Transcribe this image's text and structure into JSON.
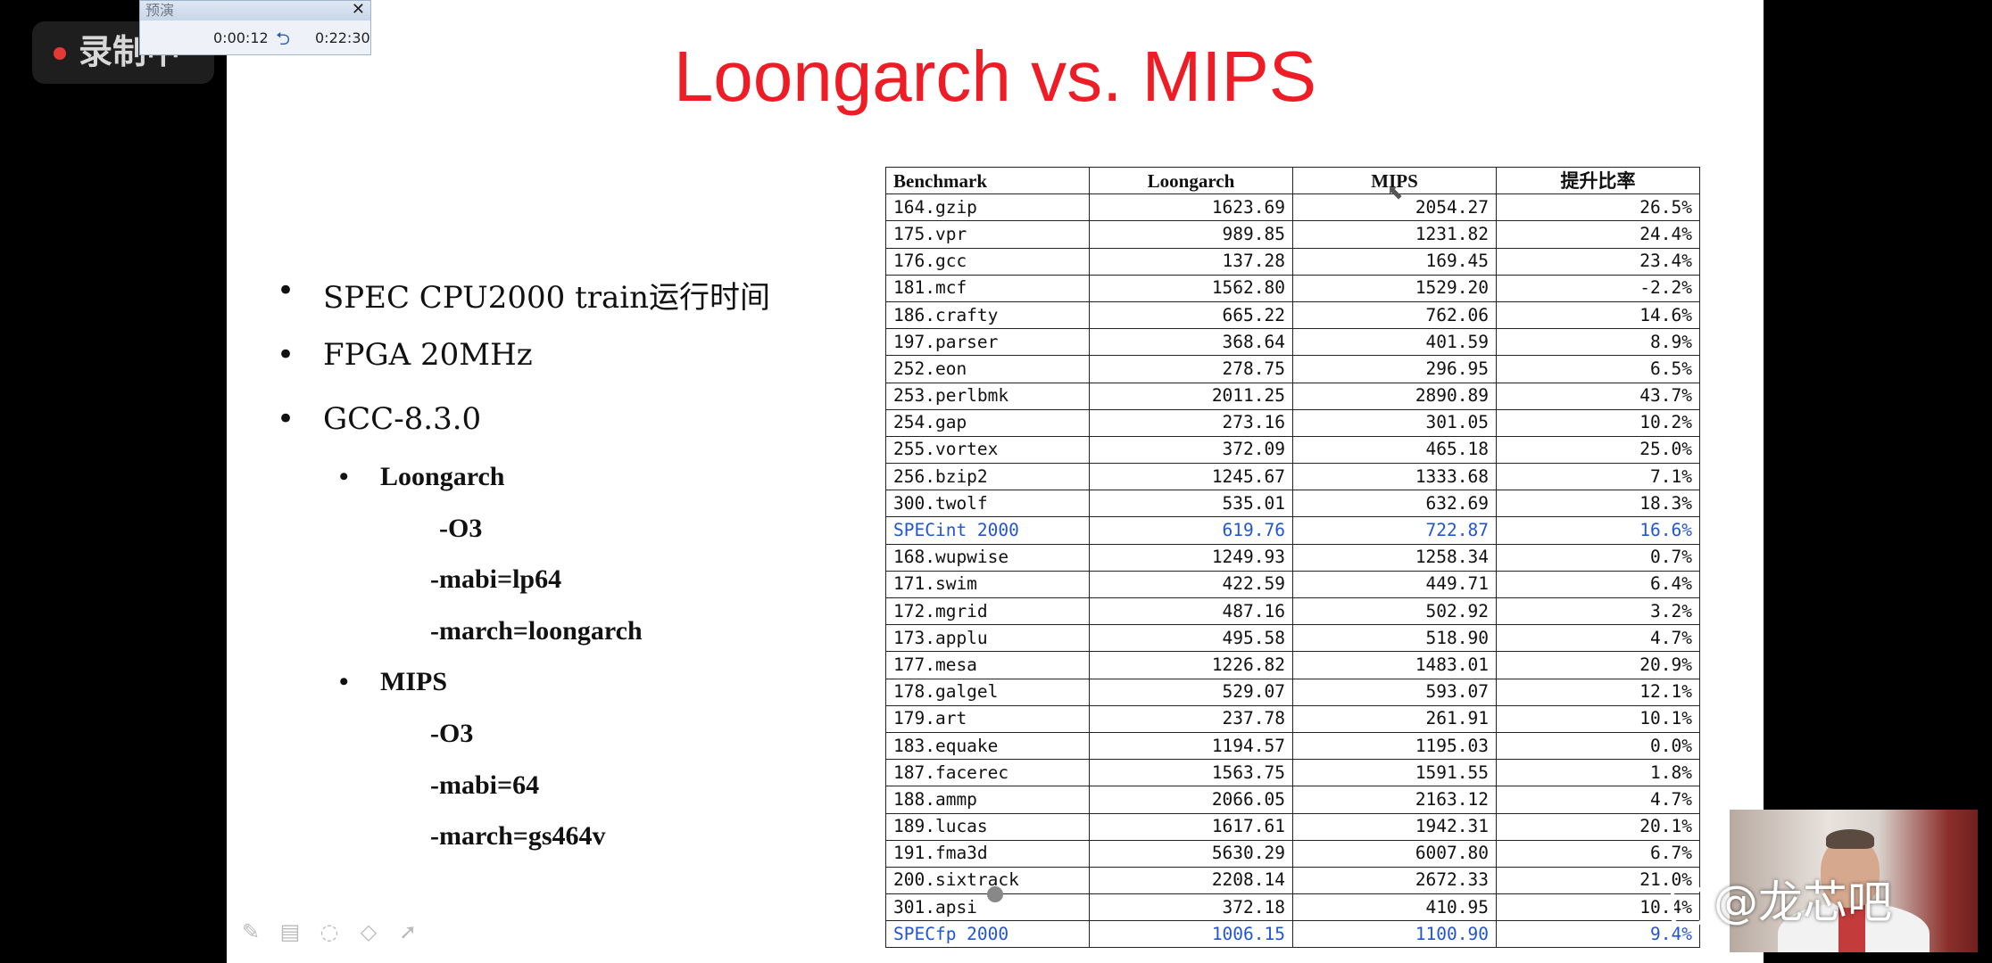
{
  "recording_badge": {
    "label": "录制中",
    "dot_color": "#e53935"
  },
  "preview_window": {
    "title": "预演",
    "close": "✕",
    "elapsed": "0:00:12",
    "total": "0:22:30"
  },
  "slide": {
    "title": "Loongarch vs. MIPS",
    "title_color": "#ee1c25",
    "bullets": {
      "b1": "SPEC CPU2000 train运行时间",
      "b2": "FPGA 20MHz",
      "b3": "GCC-8.3.0",
      "loongarch": {
        "label": "Loongarch",
        "flags": [
          "-O3",
          "-mabi=lp64",
          "-march=loongarch"
        ]
      },
      "mips": {
        "label": "MIPS",
        "flags": [
          "-O3",
          "-mabi=64",
          "-march=gs464v"
        ]
      }
    },
    "table": {
      "headers": [
        "Benchmark",
        "Loongarch",
        "MIPS",
        "提升比率"
      ],
      "rows": [
        [
          "164.gzip",
          "1623.69",
          "2054.27",
          "26.5%"
        ],
        [
          "175.vpr",
          "989.85",
          "1231.82",
          "24.4%"
        ],
        [
          "176.gcc",
          "137.28",
          "169.45",
          "23.4%"
        ],
        [
          "181.mcf",
          "1562.80",
          "1529.20",
          "-2.2%"
        ],
        [
          "186.crafty",
          "665.22",
          "762.06",
          "14.6%"
        ],
        [
          "197.parser",
          "368.64",
          "401.59",
          "8.9%"
        ],
        [
          "252.eon",
          "278.75",
          "296.95",
          "6.5%"
        ],
        [
          "253.perlbmk",
          "2011.25",
          "2890.89",
          "43.7%"
        ],
        [
          "254.gap",
          "273.16",
          "301.05",
          "10.2%"
        ],
        [
          "255.vortex",
          "372.09",
          "465.18",
          "25.0%"
        ],
        [
          "256.bzip2",
          "1245.67",
          "1333.68",
          "7.1%"
        ],
        [
          "300.twolf",
          "535.01",
          "632.69",
          "18.3%"
        ],
        [
          "SPECint 2000",
          "619.76",
          "722.87",
          "16.6%"
        ],
        [
          "168.wupwise",
          "1249.93",
          "1258.34",
          "0.7%"
        ],
        [
          "171.swim",
          "422.59",
          "449.71",
          "6.4%"
        ],
        [
          "172.mgrid",
          "487.16",
          "502.92",
          "3.2%"
        ],
        [
          "173.applu",
          "495.58",
          "518.90",
          "4.7%"
        ],
        [
          "177.mesa",
          "1226.82",
          "1483.01",
          "20.9%"
        ],
        [
          "178.galgel",
          "529.07",
          "593.07",
          "12.1%"
        ],
        [
          "179.art",
          "237.78",
          "261.91",
          "10.1%"
        ],
        [
          "183.equake",
          "1194.57",
          "1195.03",
          "0.0%"
        ],
        [
          "187.facerec",
          "1563.75",
          "1591.55",
          "1.8%"
        ],
        [
          "188.ammp",
          "2066.05",
          "2163.12",
          "4.7%"
        ],
        [
          "189.lucas",
          "1617.61",
          "1942.31",
          "20.1%"
        ],
        [
          "191.fma3d",
          "5630.29",
          "6007.80",
          "6.7%"
        ],
        [
          "200.sixtrack",
          "2208.14",
          "2672.33",
          "21.0%"
        ],
        [
          "301.apsi",
          "372.18",
          "410.95",
          "10.4%"
        ],
        [
          "SPECfp 2000",
          "1006.15",
          "1100.90",
          "9.4%"
        ]
      ],
      "summary_rows": [
        12,
        27
      ],
      "summary_color": "#2255d4"
    }
  },
  "toolbar": {
    "icons": [
      "pen-icon",
      "screen-icon",
      "eraser-loop-icon",
      "eraser-icon",
      "pointer-icon"
    ]
  },
  "watermark": {
    "text": "@龙芯吧"
  }
}
